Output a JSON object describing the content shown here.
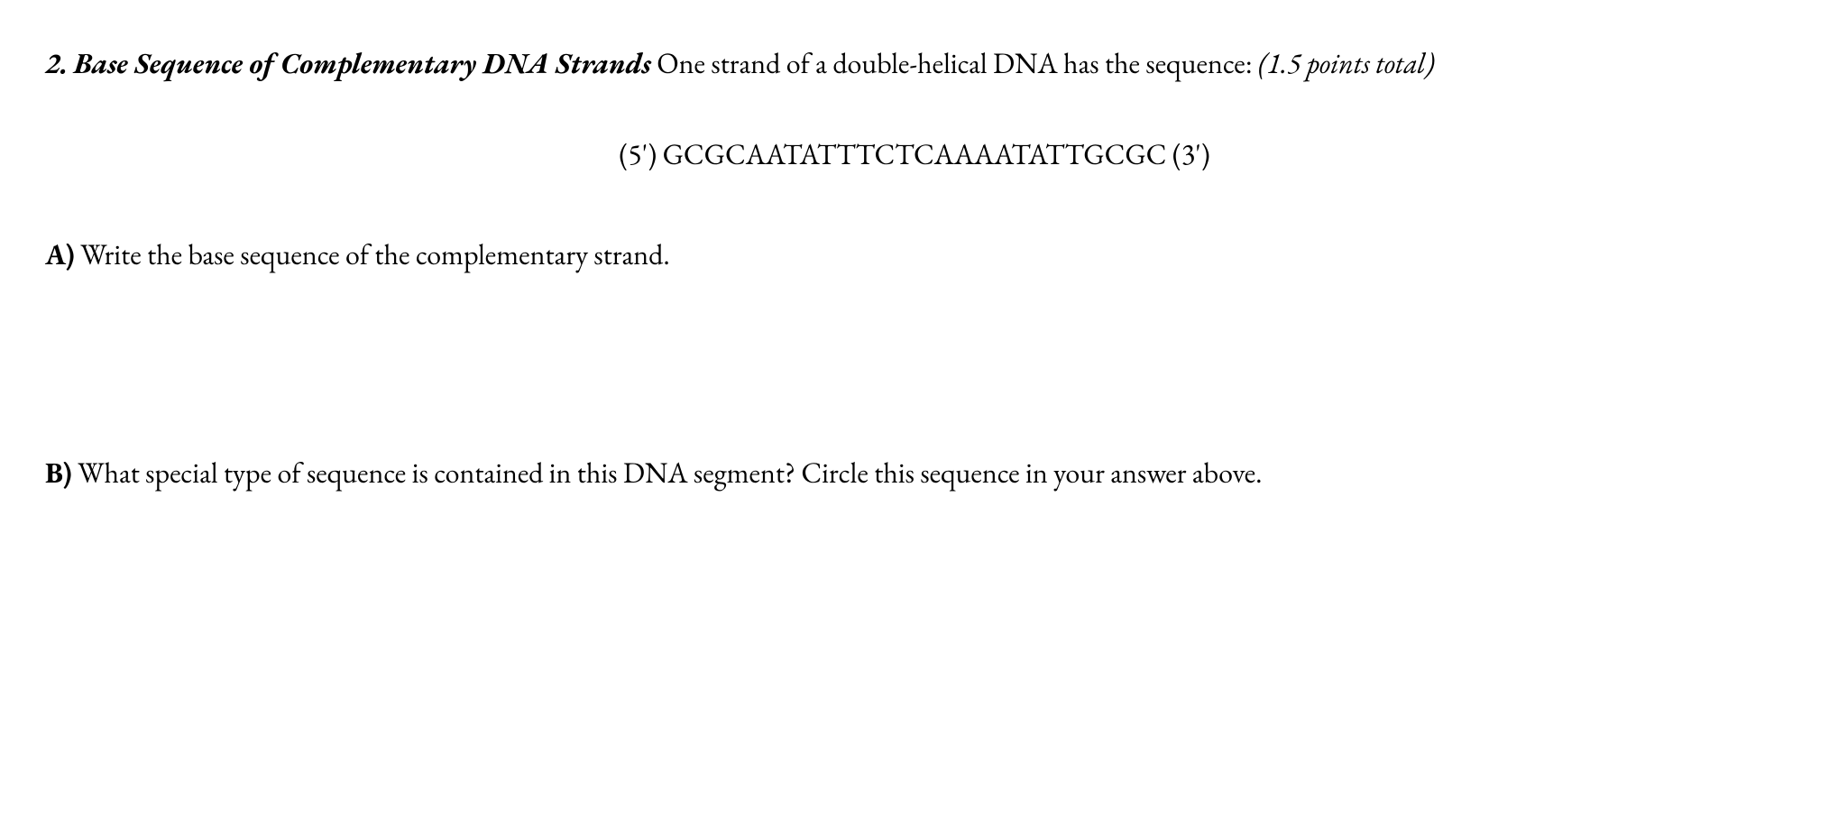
{
  "question": {
    "number": "2.",
    "title": "Base Sequence of Complementary DNA Strands",
    "intro_text": " One strand of a double-helical DNA has the sequence: ",
    "points": "(1.5 points total)",
    "sequence_prefix": "(5')",
    "sequence_bases": "GCGCAATATTTCTCAAAATATTGCGC",
    "sequence_suffix": "(3')",
    "part_a_label": "A)",
    "part_a_text": " Write the base sequence of the complementary strand.",
    "part_b_label": "B)",
    "part_b_text": " What special type of sequence is contained in this DNA segment? Circle this sequence in your answer above."
  },
  "styling": {
    "font_family": "Garamond",
    "font_size_pt": 32,
    "text_color": "#000000",
    "background_color": "#ffffff",
    "line_height": 1.9
  }
}
